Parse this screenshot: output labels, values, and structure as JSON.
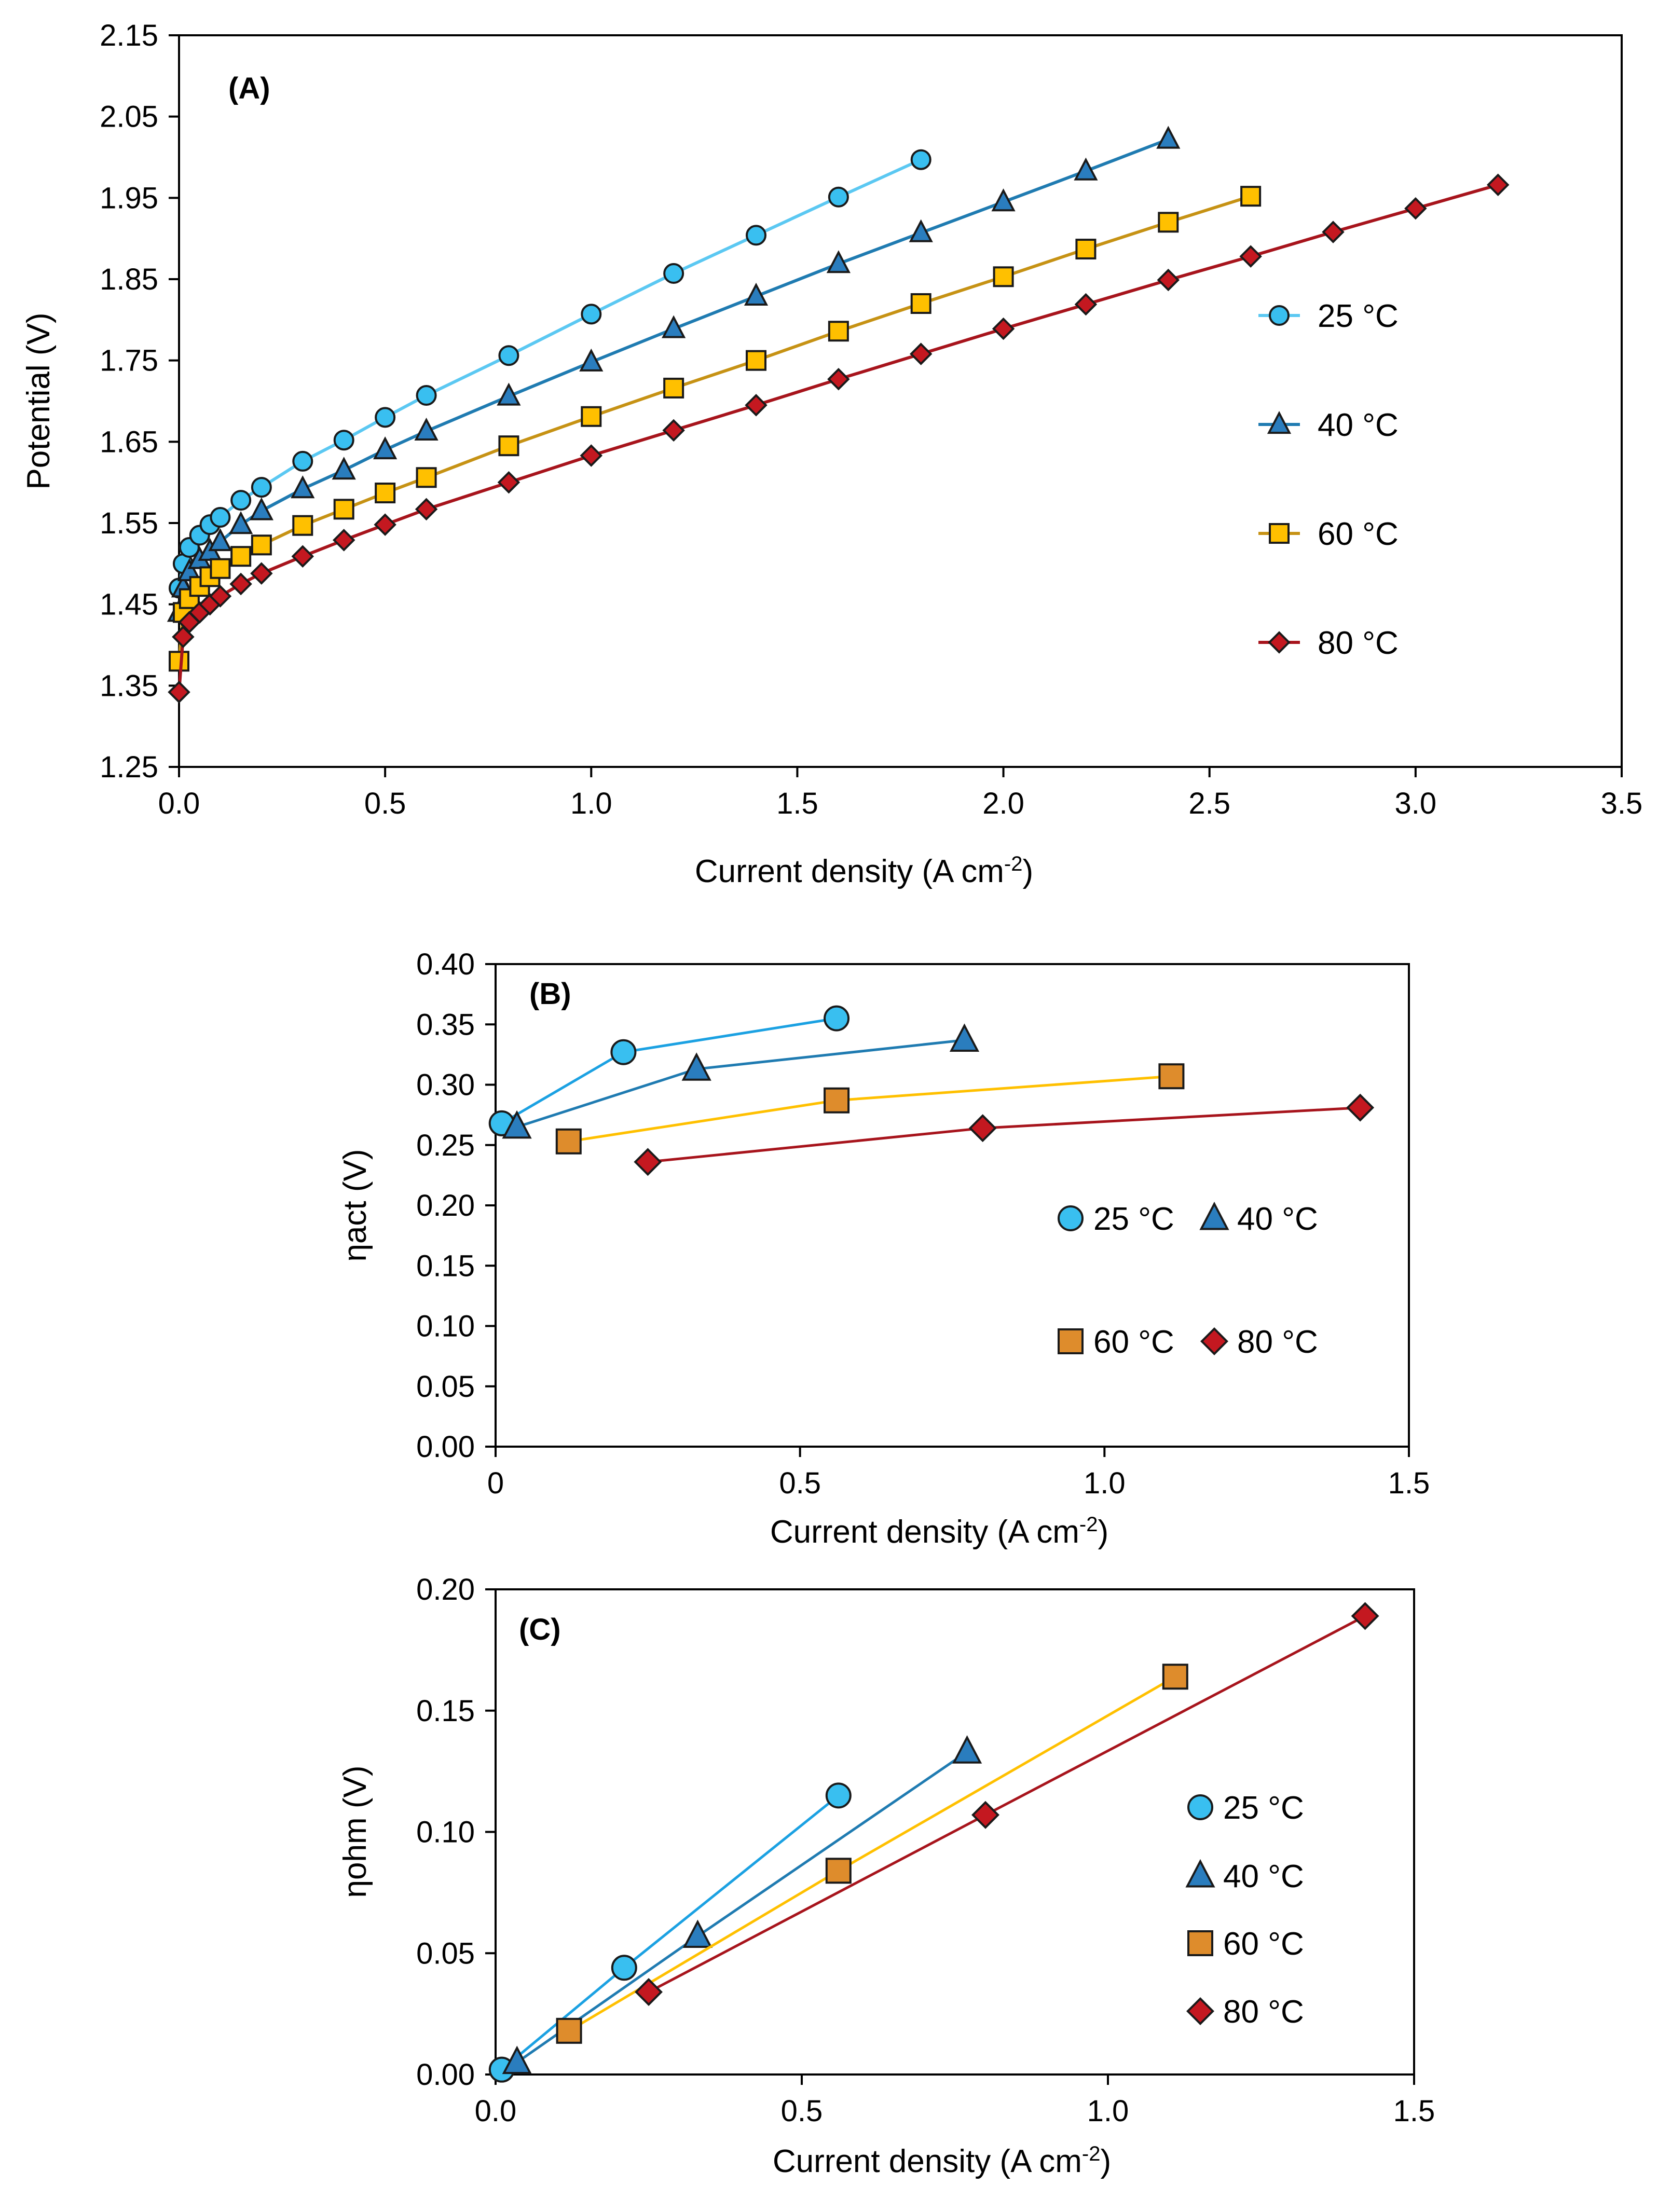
{
  "colors": {
    "s25_line": "#5bc8f2",
    "s25_fill": "#39bff0",
    "s40_line": "#1f7bb1",
    "s40_fill": "#2a7dbe",
    "s60_line_a": "#c69214",
    "s60_fill_a": "#ffc000",
    "s60_line_bc": "#ffc000",
    "s60_fill_bc": "#de8c2c",
    "s80_line": "#a7141c",
    "s80_fill": "#c41820",
    "bc25_line": "#1ba1e2",
    "marker_stroke": "#1a1a1a"
  },
  "chart_data": [
    {
      "id": "A",
      "type": "line",
      "panel_label": "(A)",
      "xlabel": "Current density (A cm",
      "xlabel_sup": "-2",
      "xlabel_end": ")",
      "ylabel": "Potential (V)",
      "xlim": [
        0,
        3.5
      ],
      "ylim": [
        1.25,
        2.15
      ],
      "xticks": [
        "0.0",
        "0.5",
        "1.0",
        "1.5",
        "2.0",
        "2.5",
        "3.0",
        "3.5"
      ],
      "yticks": [
        "1.25",
        "1.35",
        "1.45",
        "1.55",
        "1.65",
        "1.75",
        "1.85",
        "1.95",
        "2.05",
        "2.15"
      ],
      "legend_position": "right",
      "series": [
        {
          "name": "25 °C",
          "marker": "circle",
          "style": "s25",
          "x": [
            0,
            0.01,
            0.025,
            0.05,
            0.075,
            0.1,
            0.15,
            0.2,
            0.3,
            0.4,
            0.5,
            0.6,
            0.8,
            1.0,
            1.2,
            1.4,
            1.6,
            1.8
          ],
          "y": [
            1.47,
            1.5,
            1.52,
            1.535,
            1.548,
            1.557,
            1.578,
            1.594,
            1.626,
            1.652,
            1.68,
            1.707,
            1.756,
            1.807,
            1.857,
            1.904,
            1.951,
            1.997
          ]
        },
        {
          "name": "40 °C",
          "marker": "triangle",
          "style": "s40",
          "x": [
            0,
            0.01,
            0.025,
            0.05,
            0.075,
            0.1,
            0.15,
            0.2,
            0.3,
            0.4,
            0.5,
            0.6,
            0.8,
            1.0,
            1.2,
            1.4,
            1.6,
            1.8,
            2.0,
            2.2,
            2.4
          ],
          "y": [
            1.44,
            1.47,
            1.49,
            1.505,
            1.515,
            1.527,
            1.548,
            1.565,
            1.592,
            1.615,
            1.64,
            1.663,
            1.706,
            1.748,
            1.789,
            1.829,
            1.869,
            1.907,
            1.945,
            1.983,
            2.022
          ]
        },
        {
          "name": "60 °C",
          "marker": "square",
          "style": "s60a",
          "x": [
            0,
            0.01,
            0.025,
            0.05,
            0.075,
            0.1,
            0.15,
            0.2,
            0.3,
            0.4,
            0.5,
            0.6,
            0.8,
            1.0,
            1.2,
            1.4,
            1.6,
            1.8,
            2.0,
            2.2,
            2.4,
            2.6
          ],
          "y": [
            1.38,
            1.44,
            1.457,
            1.472,
            1.484,
            1.494,
            1.509,
            1.523,
            1.547,
            1.567,
            1.587,
            1.606,
            1.645,
            1.681,
            1.716,
            1.75,
            1.786,
            1.82,
            1.853,
            1.887,
            1.92,
            1.952
          ]
        },
        {
          "name": "80 °C",
          "marker": "diamond",
          "style": "s80",
          "x": [
            0,
            0.01,
            0.025,
            0.05,
            0.075,
            0.1,
            0.15,
            0.2,
            0.3,
            0.4,
            0.5,
            0.6,
            0.8,
            1.0,
            1.2,
            1.4,
            1.6,
            1.8,
            2.0,
            2.2,
            2.4,
            2.6,
            2.8,
            3.0,
            3.2
          ],
          "y": [
            1.342,
            1.41,
            1.428,
            1.44,
            1.45,
            1.46,
            1.475,
            1.488,
            1.509,
            1.529,
            1.548,
            1.567,
            1.6,
            1.633,
            1.664,
            1.695,
            1.727,
            1.758,
            1.789,
            1.819,
            1.849,
            1.878,
            1.908,
            1.937,
            1.966
          ]
        }
      ]
    },
    {
      "id": "B",
      "type": "line",
      "panel_label": "(B)",
      "xlabel": "Current density (A cm",
      "xlabel_sup": "-2",
      "xlabel_end": ")",
      "ylabel": "ηact (V)",
      "xlim": [
        0,
        1.5
      ],
      "ylim": [
        0,
        0.4
      ],
      "xticks": [
        "0",
        "0.5",
        "1.0",
        "1.5"
      ],
      "yticks": [
        "0.00",
        "0.05",
        "0.10",
        "0.15",
        "0.20",
        "0.25",
        "0.30",
        "0.35",
        "0.40"
      ],
      "legend_position": "center-right",
      "series": [
        {
          "name": "25 °C",
          "marker": "circle",
          "style": "b25",
          "x": [
            0.01,
            0.21,
            0.56
          ],
          "y": [
            0.268,
            0.327,
            0.355
          ]
        },
        {
          "name": "40 °C",
          "marker": "triangle",
          "style": "s40",
          "x": [
            0.035,
            0.33,
            0.77
          ],
          "y": [
            0.265,
            0.313,
            0.337
          ]
        },
        {
          "name": "60 °C",
          "marker": "square",
          "style": "s60bc",
          "x": [
            0.12,
            0.56,
            1.11
          ],
          "y": [
            0.253,
            0.287,
            0.307
          ]
        },
        {
          "name": "80 °C",
          "marker": "diamond",
          "style": "s80",
          "x": [
            0.25,
            0.8,
            1.42
          ],
          "y": [
            0.236,
            0.264,
            0.281
          ]
        }
      ]
    },
    {
      "id": "C",
      "type": "line",
      "panel_label": "(C)",
      "xlabel": "Current density (A cm",
      "xlabel_sup": "-2",
      "xlabel_end": ")",
      "ylabel": "ηohm (V)",
      "xlim": [
        0,
        1.5
      ],
      "ylim": [
        0,
        0.2
      ],
      "xticks": [
        "0.0",
        "0.5",
        "1.0",
        "1.5"
      ],
      "yticks": [
        "0.00",
        "0.05",
        "0.10",
        "0.15",
        "0.20"
      ],
      "legend_position": "right",
      "series": [
        {
          "name": "25 °C",
          "marker": "circle",
          "style": "b25",
          "x": [
            0.01,
            0.21,
            0.56
          ],
          "y": [
            0.002,
            0.044,
            0.115
          ]
        },
        {
          "name": "40 °C",
          "marker": "triangle",
          "style": "s40",
          "x": [
            0.035,
            0.33,
            0.77
          ],
          "y": [
            0.005,
            0.057,
            0.133
          ]
        },
        {
          "name": "60 °C",
          "marker": "square",
          "style": "s60bc",
          "x": [
            0.12,
            0.56,
            1.11
          ],
          "y": [
            0.018,
            0.084,
            0.164
          ]
        },
        {
          "name": "80 °C",
          "marker": "diamond",
          "style": "s80",
          "x": [
            0.25,
            0.8,
            1.42
          ],
          "y": [
            0.034,
            0.107,
            0.189
          ]
        }
      ]
    }
  ]
}
